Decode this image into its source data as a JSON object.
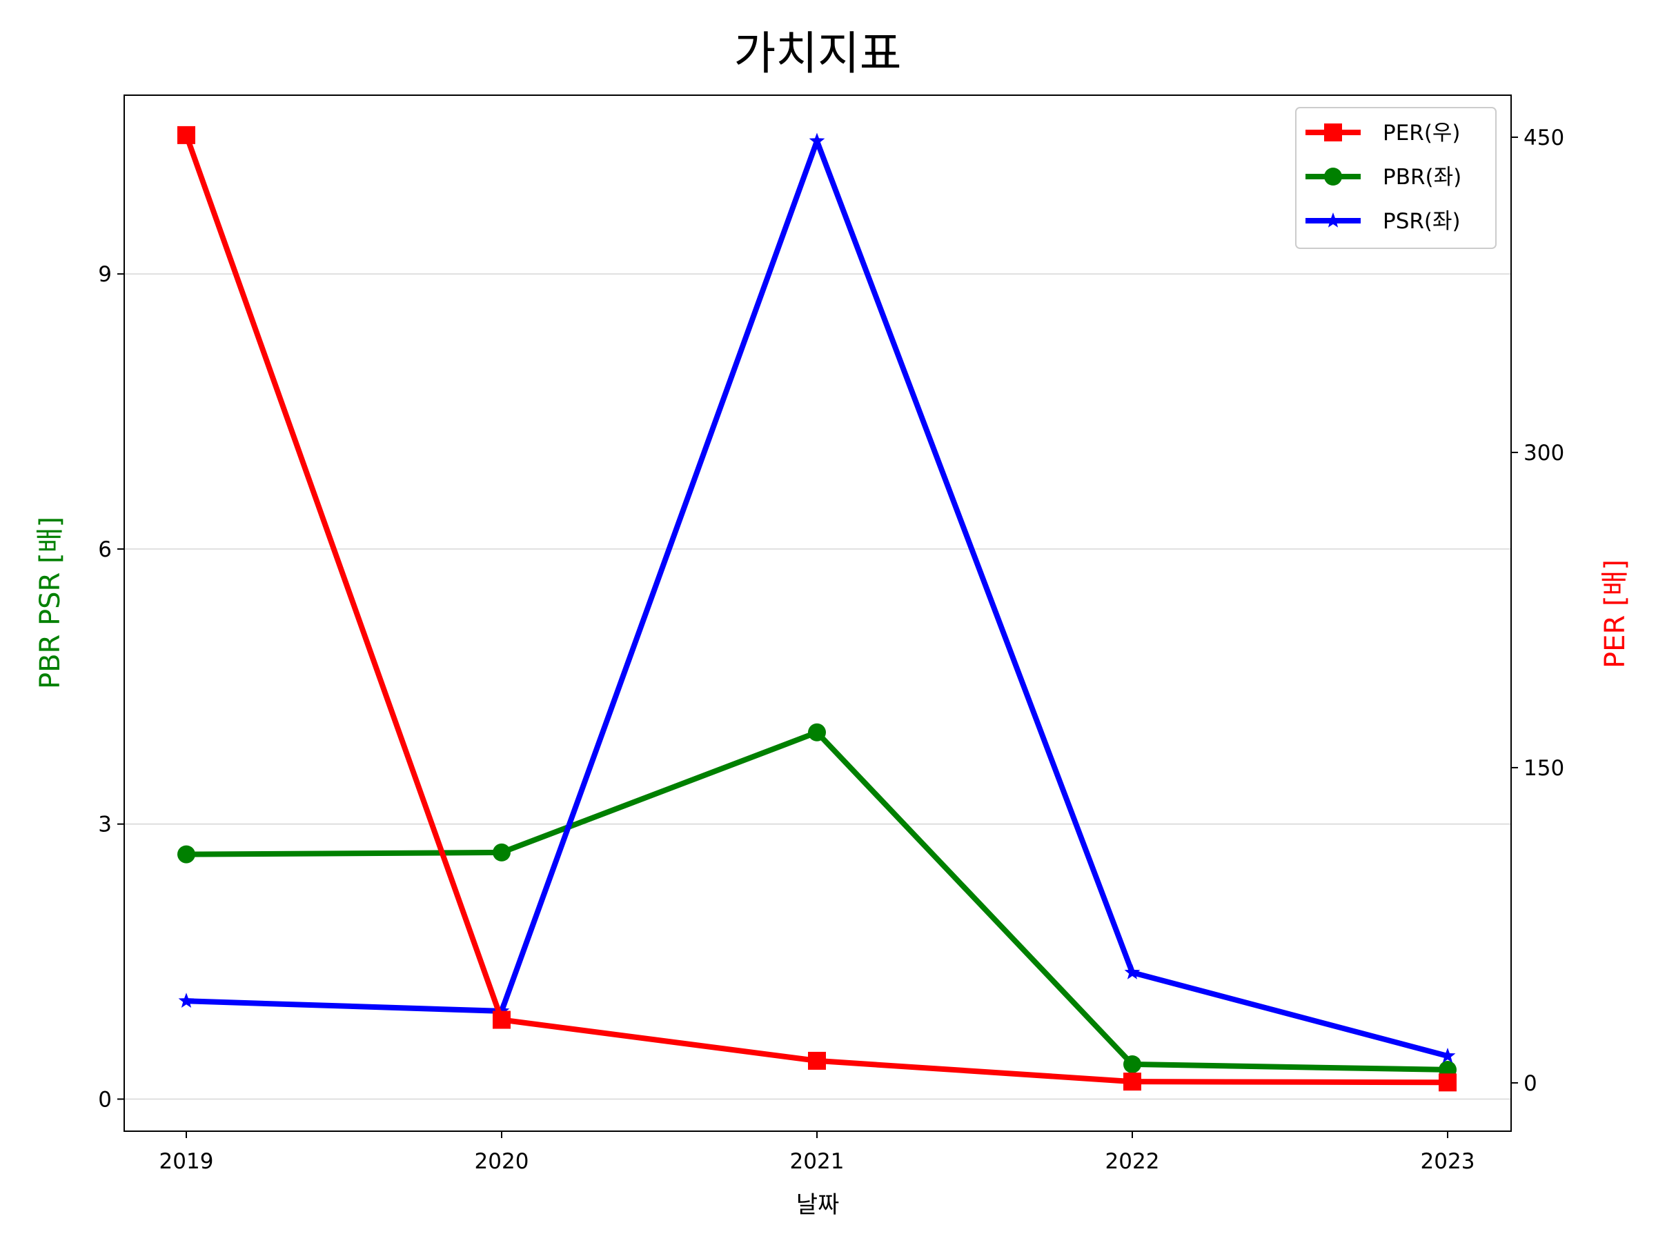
{
  "chart_data": {
    "type": "line",
    "title": "가치지표",
    "xlabel": "날짜",
    "ylabel_left": "PBR PSR [배]",
    "ylabel_right": "PER [배]",
    "categories": [
      "2019",
      "2020",
      "2021",
      "2022",
      "2023"
    ],
    "ylim_left": [
      -0.35,
      10.95
    ],
    "ylim_right": [
      -23,
      470
    ],
    "yticks_left": [
      0,
      3,
      6,
      9
    ],
    "yticks_right": [
      0,
      150,
      300,
      450
    ],
    "grid": "horizontal (left axis)",
    "legend_placement": "top-right",
    "series": [
      {
        "name": "PER(우)",
        "axis": "right",
        "marker": "square",
        "color": "#ff0000",
        "values": [
          451,
          30,
          10.5,
          0.6,
          0.2
        ]
      },
      {
        "name": "PBR(좌)",
        "axis": "left",
        "marker": "circle",
        "color": "#008000",
        "values": [
          2.67,
          2.69,
          4.0,
          0.38,
          0.32
        ]
      },
      {
        "name": "PSR(좌)",
        "axis": "left",
        "marker": "star",
        "color": "#0000ff",
        "values": [
          1.07,
          0.96,
          10.45,
          1.38,
          0.47
        ]
      }
    ],
    "colors": {
      "left_axis_label": "#008000",
      "right_axis_label": "#ff0000",
      "grid": "#d3d3d3"
    }
  }
}
